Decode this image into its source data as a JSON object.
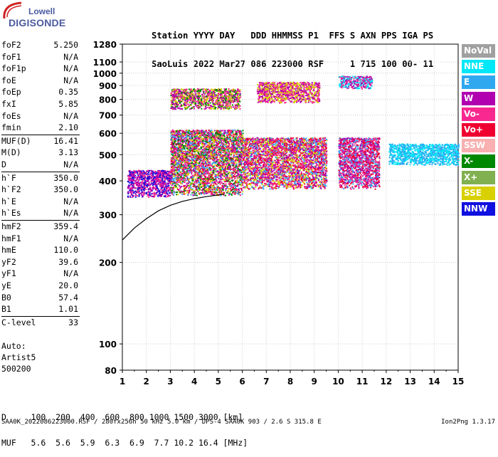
{
  "logo": {
    "line1": "Lowell",
    "line2": "DIGISONDE"
  },
  "header": {
    "row1": "Station YYYY DAY   DDD HHMMSS P1  FFS S AXN PPS IGA PS",
    "row2": "SaoLuis 2022 Mar27 086 223000 RSF     1 715 100 00- 11"
  },
  "params": [
    {
      "label": "foF2",
      "value": "5.250"
    },
    {
      "label": "foF1",
      "value": "N/A"
    },
    {
      "label": "foF1p",
      "value": "N/A"
    },
    {
      "label": "foE",
      "value": "N/A"
    },
    {
      "label": "foEp",
      "value": "0.35"
    },
    {
      "label": "fxI",
      "value": "5.85"
    },
    {
      "label": "foEs",
      "value": "N/A"
    },
    {
      "label": "fmin",
      "value": "2.10"
    },
    {
      "label": "MUF(D)",
      "value": "16.41"
    },
    {
      "label": "M(D)",
      "value": "3.13"
    },
    {
      "label": "D",
      "value": "N/A"
    },
    {
      "label": "h`F",
      "value": "350.0"
    },
    {
      "label": "h`F2",
      "value": "350.0"
    },
    {
      "label": "h`E",
      "value": "N/A"
    },
    {
      "label": "h`Es",
      "value": "N/A"
    },
    {
      "label": "hmF2",
      "value": "359.4"
    },
    {
      "label": "hmF1",
      "value": "N/A"
    },
    {
      "label": "hmE",
      "value": "110.0"
    },
    {
      "label": "yF2",
      "value": "39.6"
    },
    {
      "label": "yF1",
      "value": "N/A"
    },
    {
      "label": "yE",
      "value": "20.0"
    },
    {
      "label": "B0",
      "value": "57.4"
    },
    {
      "label": "B1",
      "value": "1.01"
    },
    {
      "label": "C-level",
      "value": "33"
    }
  ],
  "auto": {
    "line1": "Auto:",
    "line2": "Artist5",
    "line3": "500200"
  },
  "legend": [
    {
      "label": "NoVal",
      "color": "#a0a0a0"
    },
    {
      "label": "NNE",
      "color": "#00e8f8"
    },
    {
      "label": "E",
      "color": "#30a8f0"
    },
    {
      "label": "W",
      "color": "#b000b0"
    },
    {
      "label": "Vo-",
      "color": "#f82890"
    },
    {
      "label": "Vo+",
      "color": "#f00030"
    },
    {
      "label": "SSW",
      "color": "#f8b0b0"
    },
    {
      "label": "X-",
      "color": "#008800"
    },
    {
      "label": "X+",
      "color": "#80b050"
    },
    {
      "label": "SSE",
      "color": "#d8d000"
    },
    {
      "label": "NNW",
      "color": "#1010e0"
    }
  ],
  "table": {
    "row1": "D     100  200  400  600  800 1000 1500 3000 [km]",
    "row2": "MUF   5.6  5.6  5.9  6.3  6.9  7.7 10.2 16.4 [MHz]"
  },
  "footer": {
    "left": "SAA0K_2022086223000.RSF / 280fx256h 50 kHz 5.0 km / DPS-4 SAA0K 903 / 2.6 S 315.8 E",
    "right": "Ion2Png 1.3.17"
  },
  "chart_data": {
    "type": "scatter",
    "xlabel": "",
    "ylabel": "",
    "xlim": [
      1,
      15
    ],
    "ylim": [
      80,
      1280
    ],
    "y_scale": "log",
    "x_ticks": [
      1,
      2,
      3,
      4,
      5,
      6,
      7,
      8,
      9,
      10,
      11,
      12,
      13,
      14,
      15
    ],
    "y_ticks": [
      80,
      100,
      200,
      300,
      400,
      500,
      600,
      700,
      800,
      900,
      1000,
      1100,
      1280
    ],
    "profile_curve": {
      "x": [
        1.0,
        1.5,
        2.0,
        2.5,
        3.0,
        3.5,
        4.0,
        4.5,
        5.0,
        5.25
      ],
      "y": [
        242,
        268,
        290,
        310,
        325,
        336,
        344,
        350,
        355,
        358
      ]
    },
    "echo_clusters": [
      {
        "x": [
          1.2,
          3.0
        ],
        "y": [
          350,
          440
        ],
        "colors": [
          "#1010e0",
          "#b000b0",
          "#f82890"
        ]
      },
      {
        "x": [
          3.0,
          6.0
        ],
        "y": [
          355,
          620
        ],
        "colors": [
          "#b000b0",
          "#f82890",
          "#f00030",
          "#30a8f0",
          "#008800",
          "#d8d000"
        ]
      },
      {
        "x": [
          6.0,
          9.5
        ],
        "y": [
          375,
          580
        ],
        "colors": [
          "#f82890",
          "#f00030",
          "#b000b0",
          "#30a8f0",
          "#d8d000"
        ]
      },
      {
        "x": [
          10.0,
          11.7
        ],
        "y": [
          375,
          580
        ],
        "colors": [
          "#f00030",
          "#f82890",
          "#b000b0",
          "#30a8f0"
        ]
      },
      {
        "x": [
          12.1,
          15.0
        ],
        "y": [
          460,
          550
        ],
        "colors": [
          "#00e8f8",
          "#30a8f0"
        ]
      },
      {
        "x": [
          3.0,
          5.9
        ],
        "y": [
          740,
          880
        ],
        "colors": [
          "#d8d000",
          "#008800",
          "#b000b0",
          "#f82890"
        ]
      },
      {
        "x": [
          6.6,
          9.2
        ],
        "y": [
          780,
          930
        ],
        "colors": [
          "#d8d000",
          "#b000b0",
          "#f82890"
        ]
      },
      {
        "x": [
          10.0,
          11.4
        ],
        "y": [
          880,
          980
        ],
        "colors": [
          "#00e8f8",
          "#f82890",
          "#b000b0"
        ]
      }
    ]
  }
}
